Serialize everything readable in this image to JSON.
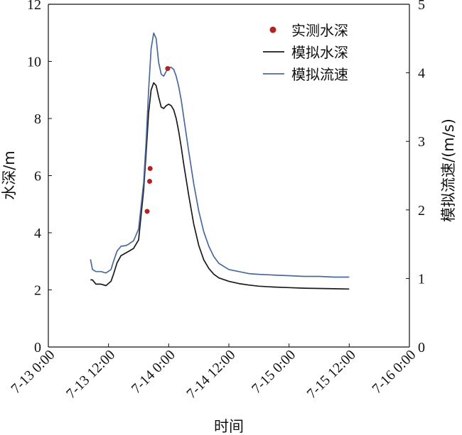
{
  "chart_data": {
    "type": "line",
    "xlabel": "时间",
    "ylabel_left": "水深/m",
    "ylabel_right": "模拟流速/(m/s)",
    "x_axis": {
      "range_hours": [
        0,
        72
      ],
      "ticks": [
        0,
        12,
        24,
        36,
        48,
        60,
        72
      ],
      "tick_labels": [
        "7-13 0:00",
        "7-13 12:00",
        "7-14 0:00",
        "7-14 12:00",
        "7-15 0:00",
        "7-15 12:00",
        "7-16 0:00"
      ]
    },
    "y_left": {
      "range": [
        0,
        12
      ],
      "ticks": [
        0,
        2,
        4,
        6,
        8,
        10,
        12
      ],
      "tick_labels": [
        "0",
        "2",
        "4",
        "6",
        "8",
        "10",
        "12"
      ]
    },
    "y_right": {
      "range": [
        0,
        5
      ],
      "ticks": [
        0,
        1,
        2,
        3,
        4,
        5
      ],
      "tick_labels": [
        "0",
        "1",
        "2",
        "3",
        "4",
        "5"
      ]
    },
    "grid": false,
    "legend_position": "top-right",
    "series": [
      {
        "name": "实测水深",
        "kind": "scatter",
        "axis": "left",
        "color": "#b22222",
        "x": [
          19.7,
          20.2,
          20.3,
          23.8
        ],
        "y": [
          4.75,
          5.8,
          6.25,
          9.75
        ]
      },
      {
        "name": "模拟水深",
        "kind": "line",
        "axis": "left",
        "color": "#1a1a1a",
        "x": [
          8.4,
          8.8,
          9.5,
          10.5,
          11.5,
          12.5,
          13,
          13.7,
          14.5,
          15.5,
          16,
          17,
          18,
          19,
          19.5,
          20,
          20.5,
          21,
          21.5,
          22,
          22.5,
          23,
          23.5,
          24,
          24.5,
          25,
          25.5,
          26,
          26.5,
          27,
          28,
          29,
          30,
          31,
          32,
          33,
          34,
          36,
          38,
          40,
          42,
          45,
          48,
          51,
          54,
          57,
          60
        ],
        "y": [
          2.35,
          2.35,
          2.2,
          2.2,
          2.15,
          2.3,
          2.55,
          2.95,
          3.2,
          3.3,
          3.35,
          3.45,
          3.75,
          5.5,
          6.8,
          8.2,
          9.0,
          9.25,
          9.15,
          8.75,
          8.4,
          8.35,
          8.45,
          8.5,
          8.45,
          8.3,
          8.0,
          7.55,
          7.0,
          6.4,
          5.3,
          4.3,
          3.55,
          3.05,
          2.75,
          2.55,
          2.42,
          2.3,
          2.22,
          2.17,
          2.13,
          2.1,
          2.08,
          2.06,
          2.05,
          2.04,
          2.03
        ]
      },
      {
        "name": "模拟流速",
        "kind": "line",
        "axis": "right",
        "color": "#4a6a9a",
        "x": [
          8.4,
          8.8,
          9.5,
          10.5,
          11.5,
          12.5,
          13,
          13.7,
          14.5,
          15.5,
          16,
          17,
          18,
          19,
          19.5,
          20,
          20.5,
          21,
          21.5,
          22,
          22.5,
          23,
          23.5,
          24,
          24.5,
          25,
          25.5,
          26,
          26.5,
          27,
          28,
          29,
          30,
          31,
          32,
          33,
          34,
          36,
          38,
          40,
          42,
          45,
          48,
          51,
          54,
          57,
          60
        ],
        "y": [
          1.28,
          1.13,
          1.1,
          1.1,
          1.08,
          1.13,
          1.25,
          1.4,
          1.47,
          1.48,
          1.5,
          1.55,
          1.72,
          2.4,
          3.0,
          3.75,
          4.35,
          4.58,
          4.5,
          4.15,
          3.98,
          3.95,
          4.02,
          4.08,
          4.08,
          4.05,
          3.95,
          3.8,
          3.6,
          3.35,
          2.85,
          2.38,
          1.98,
          1.68,
          1.47,
          1.32,
          1.22,
          1.13,
          1.1,
          1.07,
          1.06,
          1.05,
          1.04,
          1.03,
          1.03,
          1.02,
          1.02
        ]
      }
    ]
  }
}
